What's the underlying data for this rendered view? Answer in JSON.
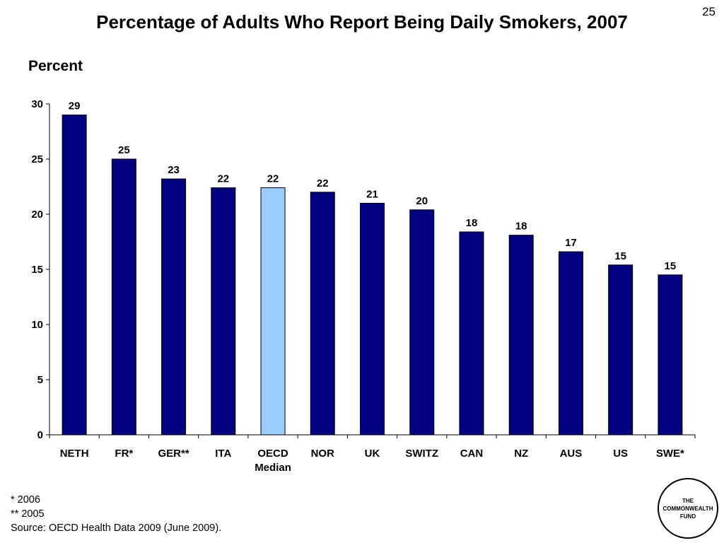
{
  "slide_number": "25",
  "logo_text": "THE\nCOMMONWEALTH\nFUND",
  "notes": {
    "note1": "* 2006",
    "note2": "** 2005",
    "source": "Source: OECD Health Data 2009 (June 2009)."
  },
  "colors": {
    "bar": "#000080",
    "highlight_bar": "#99CCFF",
    "axis": "#000000"
  },
  "chart_data": {
    "type": "bar",
    "title": "Percentage of Adults Who Report Being Daily Smokers, 2007",
    "ylabel": "Percent",
    "xlabel": "",
    "ylim": [
      0,
      30
    ],
    "yticks": [
      0,
      5,
      10,
      15,
      20,
      25,
      30
    ],
    "grid": false,
    "categories": [
      "NETH",
      "FR*",
      "GER**",
      "ITA",
      "OECD\nMedian",
      "NOR",
      "UK",
      "SWITZ",
      "CAN",
      "NZ",
      "AUS",
      "US",
      "SWE*"
    ],
    "values": [
      29.0,
      25.0,
      23.2,
      22.4,
      22.4,
      22.0,
      21.0,
      20.4,
      18.4,
      18.1,
      16.6,
      15.4,
      14.5
    ],
    "data_labels": [
      "29",
      "25",
      "23",
      "22",
      "22",
      "22",
      "21",
      "20",
      "18",
      "18",
      "17",
      "15",
      "15"
    ],
    "highlight_index": 4
  }
}
